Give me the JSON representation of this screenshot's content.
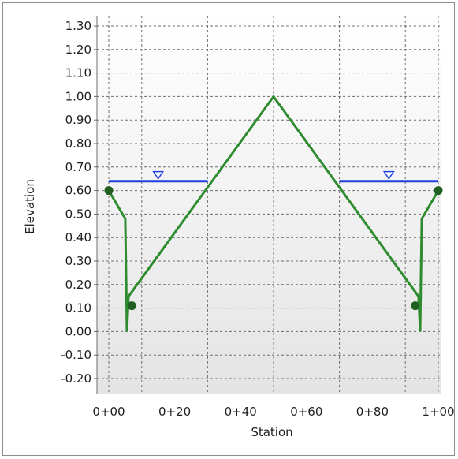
{
  "chart_data": {
    "type": "line",
    "title": "",
    "xlabel": "Station",
    "ylabel": "Elevation",
    "xlim": [
      0,
      100
    ],
    "ylim": [
      -0.3,
      1.3
    ],
    "x_ticks": [
      {
        "value": 0,
        "label": "0+00"
      },
      {
        "value": 20,
        "label": "0+20"
      },
      {
        "value": 40,
        "label": "0+40"
      },
      {
        "value": 60,
        "label": "0+60"
      },
      {
        "value": 80,
        "label": "0+80"
      },
      {
        "value": 100,
        "label": "1+00"
      }
    ],
    "x_gridlines": [
      0,
      10,
      30,
      50,
      70,
      90,
      100
    ],
    "y_ticks": [
      {
        "value": 1.3,
        "label": "1.30"
      },
      {
        "value": 1.2,
        "label": "1.20"
      },
      {
        "value": 1.1,
        "label": "1.10"
      },
      {
        "value": 1.0,
        "label": "1.00"
      },
      {
        "value": 0.9,
        "label": "0.90"
      },
      {
        "value": 0.8,
        "label": "0.80"
      },
      {
        "value": 0.7,
        "label": "0.70"
      },
      {
        "value": 0.6,
        "label": "0.60"
      },
      {
        "value": 0.5,
        "label": "0.50"
      },
      {
        "value": 0.4,
        "label": "0.40"
      },
      {
        "value": 0.3,
        "label": "0.30"
      },
      {
        "value": 0.2,
        "label": "0.20"
      },
      {
        "value": 0.1,
        "label": "0.10"
      },
      {
        "value": 0.0,
        "label": "0.00"
      },
      {
        "value": -0.1,
        "label": "-0.10"
      },
      {
        "value": -0.2,
        "label": "-0.20"
      }
    ],
    "grid": true,
    "series": [
      {
        "color": "#2e8b2e",
        "x": [
          0,
          5,
          5.5,
          6,
          50,
          94,
          94.5,
          95,
          100
        ],
        "y": [
          0.6,
          0.48,
          0.0,
          0.15,
          1.0,
          0.15,
          0.0,
          0.48,
          0.6
        ]
      },
      {
        "color": "#1f3fe0",
        "x": [
          0,
          30
        ],
        "y": [
          0.64,
          0.64
        ]
      },
      {
        "color": "#1f3fe0",
        "x": [
          70,
          100
        ],
        "y": [
          0.64,
          0.64
        ]
      }
    ],
    "markers": [
      {
        "x": 0,
        "y": 0.6
      },
      {
        "x": 7,
        "y": 0.11
      },
      {
        "x": 93,
        "y": 0.11
      },
      {
        "x": 100,
        "y": 0.6
      }
    ],
    "water_surface_symbols": [
      {
        "x": 15,
        "y": 0.64
      },
      {
        "x": 85,
        "y": 0.64
      }
    ],
    "colors": {
      "ground_line": "#2e8b2e",
      "ground_marker": "#1f5f1f",
      "water_surface": "#1f3fe0",
      "grid": "#6e6e6e",
      "plot_bg_top": "#ffffff",
      "plot_bg_bottom": "#e4e4e4"
    }
  }
}
